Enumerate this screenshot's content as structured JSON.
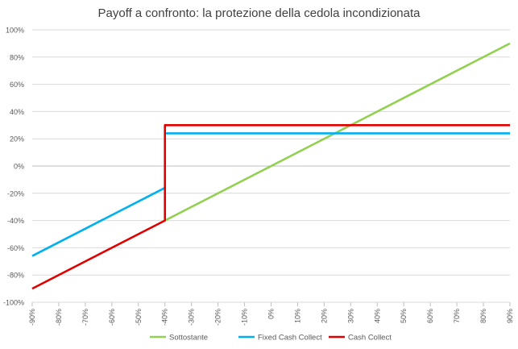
{
  "chart_data": {
    "type": "line",
    "title": "Payoff a confronto: la protezione della cedola incondizionata",
    "xlabel": "",
    "ylabel": "",
    "xlim": [
      -90,
      90
    ],
    "ylim": [
      -100,
      100
    ],
    "x_ticks": [
      -90,
      -80,
      -70,
      -60,
      -50,
      -40,
      -30,
      -20,
      -10,
      0,
      10,
      20,
      30,
      40,
      50,
      60,
      70,
      80,
      90
    ],
    "x_tick_labels": [
      "-90%",
      "-80%",
      "-70%",
      "-60%",
      "-50%",
      "-40%",
      "-30%",
      "-20%",
      "-10%",
      "0%",
      "10%",
      "20%",
      "30%",
      "40%",
      "50%",
      "60%",
      "70%",
      "80%",
      "90%"
    ],
    "y_ticks": [
      -100,
      -80,
      -60,
      -40,
      -20,
      0,
      20,
      40,
      60,
      80,
      100
    ],
    "y_tick_labels": [
      "-100%",
      "-80%",
      "-60%",
      "-40%",
      "-20%",
      "0%",
      "20%",
      "40%",
      "60%",
      "80%",
      "100%"
    ],
    "grid": "horizontal",
    "legend_position": "bottom",
    "series": [
      {
        "name": "Sottostante",
        "color": "#92d050",
        "segments": [
          [
            [
              -40,
              -40
            ],
            [
              90,
              90
            ]
          ]
        ]
      },
      {
        "name": "Fixed Cash Collect",
        "color": "#00b0f0",
        "segments": [
          [
            [
              -90,
              -66
            ],
            [
              -40,
              -16
            ]
          ],
          [
            [
              -40,
              24
            ],
            [
              90,
              24
            ]
          ]
        ]
      },
      {
        "name": "Cash Collect",
        "color": "#e00000",
        "segments": [
          [
            [
              -90,
              -90
            ],
            [
              -40,
              -40
            ],
            [
              -40,
              30
            ],
            [
              90,
              30
            ]
          ]
        ]
      }
    ]
  }
}
